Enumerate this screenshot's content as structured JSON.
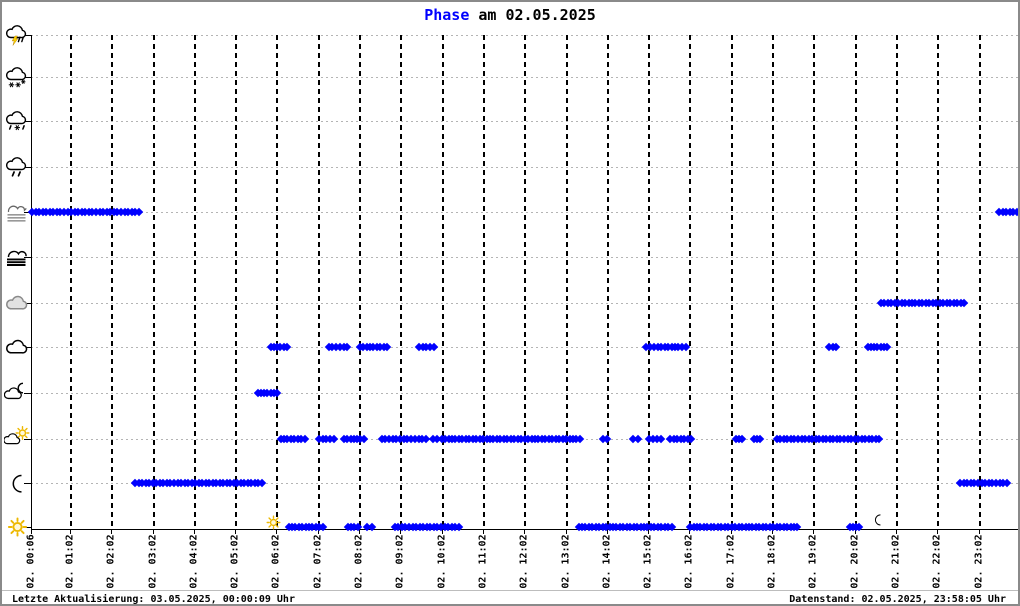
{
  "title": {
    "highlight": "Phase",
    "rest": "am 02.05.2025"
  },
  "footer": {
    "last_update": "Letzte Aktualisierung: 03.05.2025, 00:00:09 Uhr",
    "data_state": "Datenstand: 02.05.2025, 23:58:05 Uhr"
  },
  "chart_data": {
    "type": "scatter",
    "title": "Phase am 02.05.2025",
    "description": "Weather phase (symbol) over time for 02.05.2025, blue diamond markers",
    "colors": {
      "series": "#0000ff",
      "title_accent": "#0000ff",
      "grid_horizontal": "#b4b4b4",
      "grid_vertical": "#000000",
      "sun_yellow": "#edb800"
    },
    "x_tick_labels": [
      "02. 00:06",
      "02. 01:02",
      "02. 02:02",
      "02. 03:02",
      "02. 04:02",
      "02. 05:02",
      "02. 06:02",
      "02. 07:02",
      "02. 08:02",
      "02. 09:02",
      "02. 10:02",
      "02. 11:02",
      "02. 12:02",
      "02. 13:02",
      "02. 14:02",
      "02. 15:02",
      "02. 16:02",
      "02. 17:02",
      "02. 18:02",
      "02. 19:02",
      "02. 20:02",
      "02. 21:02",
      "02. 22:02",
      "02. 23:02"
    ],
    "y_rows": [
      {
        "icon": "thunderstorm-icon"
      },
      {
        "icon": "snow-icon"
      },
      {
        "icon": "sleet-icon"
      },
      {
        "icon": "rain-icon"
      },
      {
        "icon": "mist-icon"
      },
      {
        "icon": "fog-icon"
      },
      {
        "icon": "overcast-cloud-icon"
      },
      {
        "icon": "cloud-icon"
      },
      {
        "icon": "moon-cloud-icon"
      },
      {
        "icon": "sun-cloud-icon"
      },
      {
        "icon": "moon-icon"
      },
      {
        "icon": "sun-icon"
      }
    ],
    "segments": [
      {
        "row": 4,
        "phase": "mist-icon",
        "intervals": [
          [
            "00:04",
            "02:42"
          ],
          [
            "23:32",
            "23:58"
          ]
        ]
      },
      {
        "row": 10,
        "phase": "moon-icon",
        "intervals": [
          [
            "02:37",
            "05:41"
          ],
          [
            "22:35",
            "23:43"
          ]
        ]
      },
      {
        "row": 8,
        "phase": "moon-cloud-icon",
        "intervals": [
          [
            "05:35",
            "06:03"
          ]
        ]
      },
      {
        "row": 7,
        "phase": "cloud-icon",
        "intervals": [
          [
            "05:54",
            "06:17"
          ],
          [
            "07:18",
            "07:45"
          ],
          [
            "08:03",
            "08:43"
          ],
          [
            "09:29",
            "09:51"
          ],
          [
            "14:59",
            "15:10"
          ],
          [
            "15:16",
            "15:41"
          ],
          [
            "15:45",
            "15:57"
          ],
          [
            "19:25",
            "19:35"
          ],
          [
            "20:21",
            "20:49"
          ]
        ]
      },
      {
        "row": 6,
        "phase": "overcast-cloud-icon",
        "intervals": [
          [
            "20:40",
            "22:41"
          ]
        ]
      },
      {
        "row": 9,
        "phase": "sun-cloud-icon",
        "intervals": [
          [
            "06:08",
            "06:43"
          ],
          [
            "07:04",
            "07:25"
          ],
          [
            "07:40",
            "08:09"
          ],
          [
            "08:35",
            "09:23"
          ],
          [
            "09:29",
            "09:39"
          ],
          [
            "09:49",
            "09:56"
          ],
          [
            "10:02",
            "13:23"
          ],
          [
            "13:56",
            "14:02"
          ],
          [
            "14:40",
            "14:47"
          ],
          [
            "15:04",
            "15:21"
          ],
          [
            "15:34",
            "16:05"
          ],
          [
            "17:10",
            "17:18"
          ],
          [
            "17:36",
            "17:44"
          ],
          [
            "18:09",
            "20:02"
          ],
          [
            "20:07",
            "20:38"
          ]
        ]
      },
      {
        "row": 11,
        "phase": "sun-icon",
        "intervals": [
          [
            "06:21",
            "06:29"
          ],
          [
            "06:35",
            "07:09"
          ],
          [
            "07:46",
            "08:00"
          ],
          [
            "08:14",
            "08:21"
          ],
          [
            "08:54",
            "10:27"
          ],
          [
            "13:21",
            "15:36"
          ],
          [
            "16:03",
            "18:39"
          ],
          [
            "19:55",
            "20:09"
          ]
        ]
      }
    ],
    "markers": {
      "sunrise": {
        "icon": "sunrise-sun-icon",
        "time": "05:58"
      },
      "sunset": {
        "icon": "sunset-moon-icon",
        "time": "20:36"
      }
    },
    "layout_hints": {
      "grid": "vertical dashed black hourly lines, horizontal dotted gray row lines",
      "x_axis": "time of day 00:06 - 23:02, labels rotated 90deg",
      "y_axis": "12 weather symbol rows, thunderstorm (top) to sun (bottom)"
    }
  }
}
